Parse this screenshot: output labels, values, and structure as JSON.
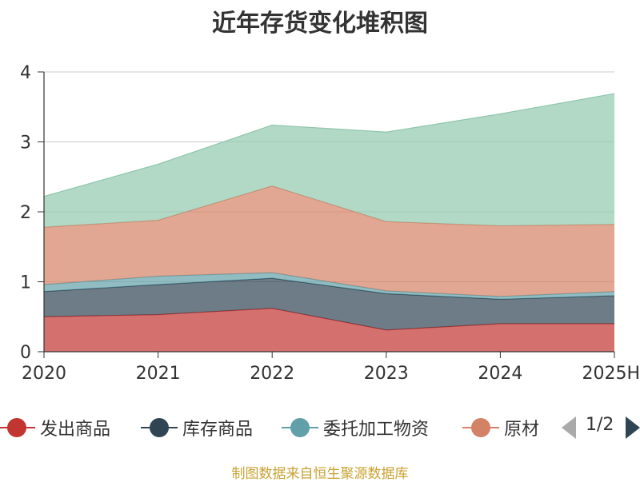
{
  "title": "近年存货变化堆积图",
  "source": "制图数据来自恒生聚源数据库",
  "pager": {
    "text": "1/2"
  },
  "chart_data": {
    "type": "area",
    "stacked": true,
    "title": "近年存货变化堆积图",
    "x": [
      "2020",
      "2021",
      "2022",
      "2023",
      "2024",
      "2025H"
    ],
    "ylim": [
      0,
      4
    ],
    "yticks": [
      "0",
      "1",
      "2",
      "3",
      "4"
    ],
    "grid": true,
    "legend_position": "bottom",
    "series": [
      {
        "name": "发出商品",
        "color": "#c23531",
        "values": [
          0.5,
          0.53,
          0.62,
          0.31,
          0.4,
          0.4
        ]
      },
      {
        "name": "库存商品",
        "color": "#2f4554",
        "values": [
          0.36,
          0.43,
          0.43,
          0.52,
          0.35,
          0.4
        ]
      },
      {
        "name": "委托加工物资",
        "color": "#61a0a8",
        "values": [
          0.1,
          0.12,
          0.08,
          0.04,
          0.04,
          0.06
        ]
      },
      {
        "name": "原材料",
        "color": "#d48265",
        "values": [
          0.82,
          0.8,
          1.24,
          0.99,
          1.01,
          0.96
        ]
      },
      {
        "name": "",
        "color": "#91c7ae",
        "values": [
          0.44,
          0.8,
          0.87,
          1.28,
          1.6,
          1.87
        ]
      }
    ],
    "legend_visible": [
      "发出商品",
      "库存商品",
      "委托加工物资",
      "原材"
    ]
  }
}
